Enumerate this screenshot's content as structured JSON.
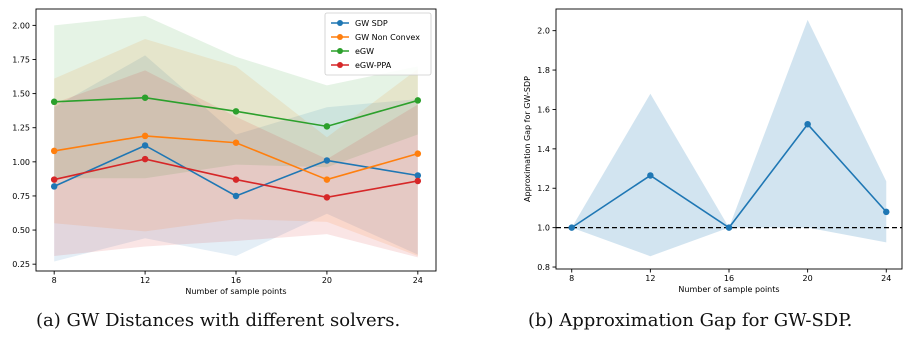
{
  "captions": {
    "a": "(a) GW Distances with different solvers.",
    "b": "(b) Approximation Gap for GW-SDP."
  },
  "chart_data": [
    {
      "type": "line",
      "title": "",
      "xlabel": "Number of sample points",
      "ylabel": "",
      "x": [
        8,
        12,
        16,
        20,
        24
      ],
      "xlim": [
        7.2,
        24.8
      ],
      "ylim": [
        0.2,
        2.12
      ],
      "xticks": [
        8,
        12,
        16,
        20,
        24
      ],
      "yticks": [
        0.25,
        0.5,
        0.75,
        1.0,
        1.25,
        1.5,
        1.75,
        2.0
      ],
      "ytick_labels": [
        "0.25",
        "0.50",
        "0.75",
        "1.00",
        "1.25",
        "1.50",
        "1.75",
        "2.00"
      ],
      "grid": false,
      "legend_position": "top-right",
      "series": [
        {
          "name": "GW SDP",
          "color": "#1f77b4",
          "values": [
            0.82,
            1.12,
            0.75,
            1.01,
            0.9
          ],
          "band_low": [
            0.27,
            0.44,
            0.31,
            0.62,
            0.32
          ],
          "band_high": [
            1.4,
            1.78,
            1.2,
            1.4,
            1.46
          ]
        },
        {
          "name": "GW Non Convex",
          "color": "#ff7f0e",
          "values": [
            1.08,
            1.19,
            1.14,
            0.87,
            1.06
          ],
          "band_low": [
            0.55,
            0.49,
            0.58,
            0.56,
            0.31
          ],
          "band_high": [
            1.61,
            1.9,
            1.7,
            1.18,
            1.68
          ]
        },
        {
          "name": "eGW",
          "color": "#2ca02c",
          "values": [
            1.44,
            1.47,
            1.37,
            1.26,
            1.45
          ],
          "band_low": [
            0.88,
            0.88,
            0.98,
            0.96,
            1.2
          ],
          "band_high": [
            2.0,
            2.07,
            1.77,
            1.56,
            1.7
          ]
        },
        {
          "name": "eGW-PPA",
          "color": "#d62728",
          "values": [
            0.87,
            1.02,
            0.87,
            0.74,
            0.86
          ],
          "band_low": [
            0.31,
            0.38,
            0.42,
            0.47,
            0.3
          ],
          "band_high": [
            1.43,
            1.67,
            1.33,
            1.02,
            1.42
          ]
        }
      ]
    },
    {
      "type": "line",
      "title": "",
      "xlabel": "Number of sample points",
      "ylabel": "Approximation Gap for GW-SDP",
      "x": [
        8,
        12,
        16,
        20,
        24
      ],
      "xlim": [
        7.2,
        24.8
      ],
      "ylim": [
        0.79,
        2.11
      ],
      "xticks": [
        8,
        12,
        16,
        20,
        24
      ],
      "yticks": [
        0.8,
        1.0,
        1.2,
        1.4,
        1.6,
        1.8,
        2.0
      ],
      "ytick_labels": [
        "0.8",
        "1.0",
        "1.2",
        "1.4",
        "1.6",
        "1.8",
        "2.0"
      ],
      "grid": false,
      "reference_line": 1.0,
      "series": [
        {
          "name": "",
          "color": "#1f77b4",
          "values": [
            1.0,
            1.265,
            1.0,
            1.525,
            1.08
          ],
          "band_low": [
            1.0,
            0.855,
            1.0,
            1.0,
            0.925
          ],
          "band_high": [
            1.0,
            1.68,
            1.0,
            2.055,
            1.235
          ]
        }
      ]
    }
  ]
}
